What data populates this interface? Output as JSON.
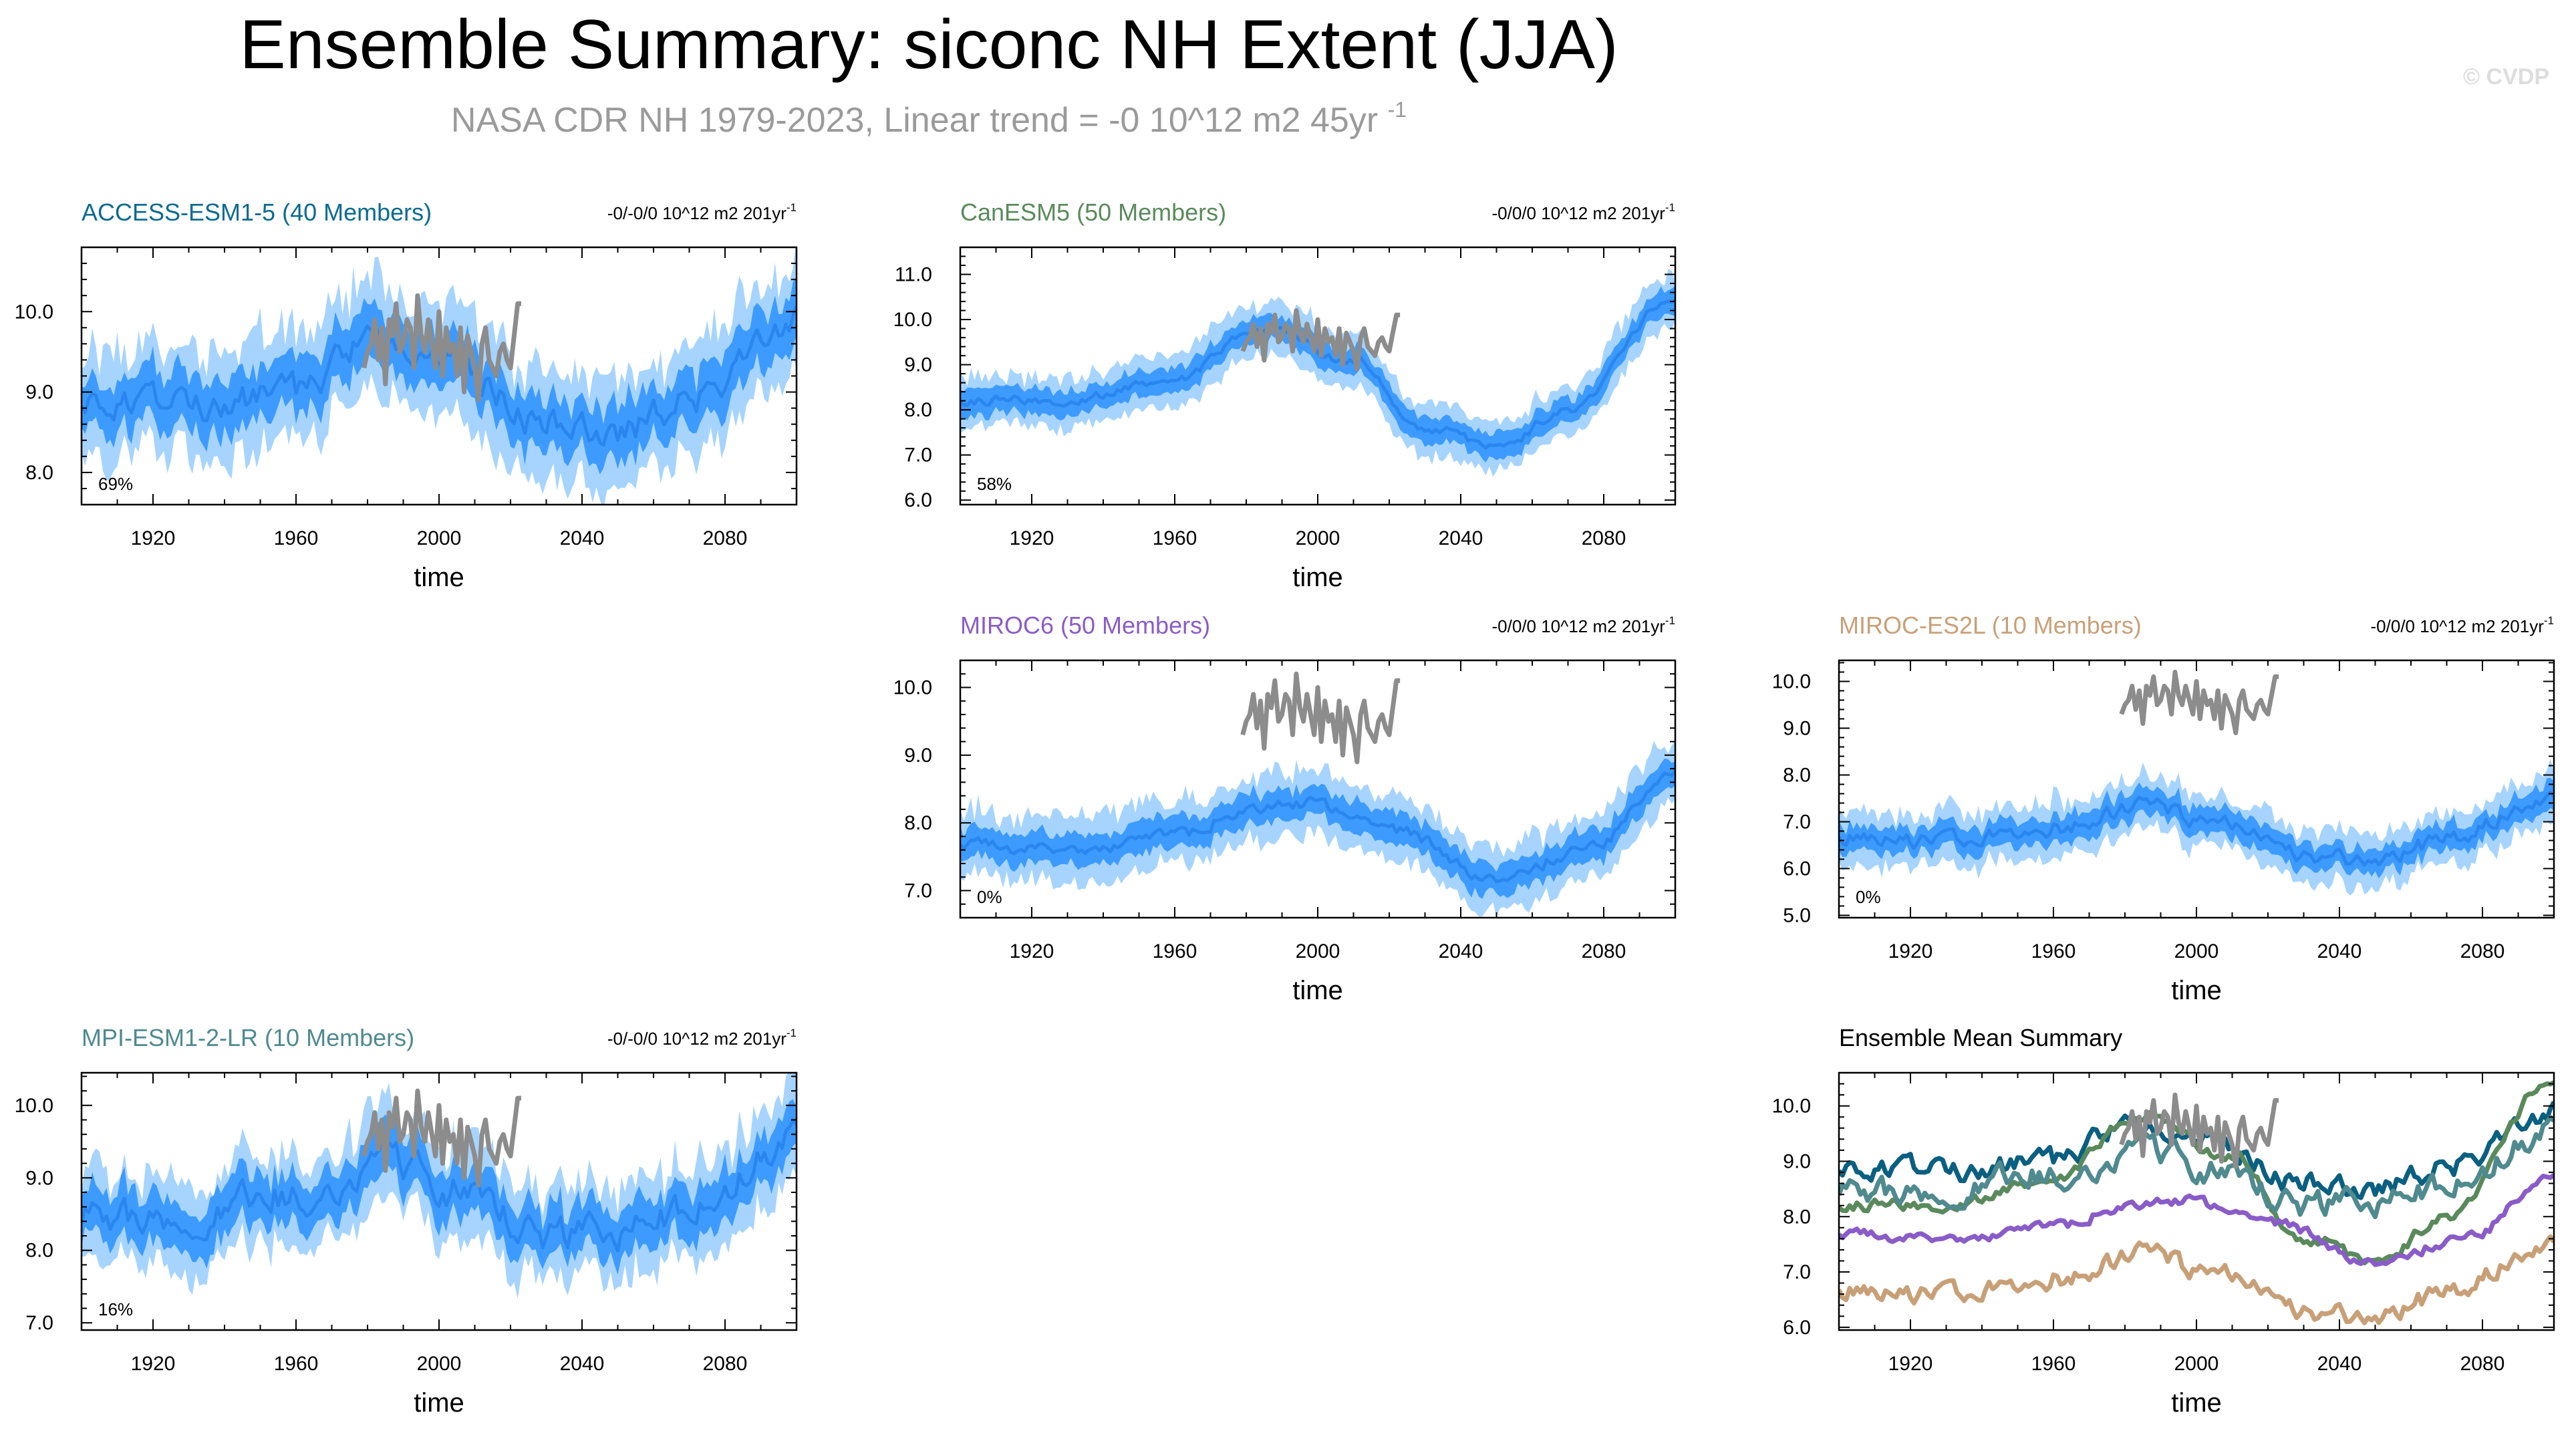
{
  "page": {
    "title": "Ensemble Summary: siconc NH Extent (JJA)",
    "subtitle": "NASA CDR NH 1979-2023, Linear trend = -0 10^12 m2 45yr",
    "subtitle_sup": "-1",
    "watermark": "© CVDP"
  },
  "colors": {
    "envelope_outer": "#a6d4ff",
    "envelope_inner": "#3d9bff",
    "ensemble_mean": "#2a86ee",
    "observations": "#8c8c8c",
    "title_text": "#000000",
    "subtitle_text": "#9a9a9a"
  },
  "observations": {
    "name": "NASA CDR NH",
    "years": [
      1979,
      2023
    ],
    "values": [
      9.3,
      9.5,
      9.6,
      9.9,
      9.4,
      9.8,
      9.1,
      9.9,
      9.7,
      10.1,
      9.5,
      9.6,
      9.9,
      9.8,
      9.3,
      10.2,
      9.7,
      9.5,
      9.9,
      9.6,
      9.3,
      10.0,
      9.2,
      9.8,
      9.5,
      9.6,
      9.2,
      9.8,
      9.0,
      9.7,
      9.5,
      9.3,
      8.9,
      9.6,
      9.8,
      9.4,
      9.3,
      9.2,
      9.5,
      9.6,
      9.4,
      9.3,
      9.7,
      10.1,
      10.1
    ]
  },
  "chart_data": [
    {
      "type": "area",
      "id": "access",
      "title": "ACCESS-ESM1-5 (40 Members)",
      "title_color": "#0b6b8f",
      "trend_label": "-0/-0/0 10^12 m2 201yr",
      "trend_sup": "-1",
      "percent_label": "69%",
      "xlabel": "time",
      "ylabel": "",
      "xlim": [
        1900,
        2100
      ],
      "ylim": [
        7.6,
        10.8
      ],
      "xticks": [
        1920,
        1960,
        2000,
        2040,
        2080
      ],
      "yticks": [
        8.0,
        9.0,
        10.0
      ],
      "ytick_labels": [
        "8.0",
        "9.0",
        "10.0"
      ],
      "mean_anchors": {
        "x": [
          1900,
          1930,
          1960,
          1980,
          2000,
          2030,
          2050,
          2070,
          2100
        ],
        "y": [
          8.9,
          8.8,
          9.0,
          9.6,
          9.5,
          8.6,
          8.5,
          8.9,
          9.9
        ]
      },
      "inner_spread": 0.33,
      "outer_spread": 0.65,
      "noise": 0.16
    },
    {
      "type": "area",
      "id": "canesm5",
      "title": "CanESM5 (50 Members)",
      "title_color": "#5a8a5c",
      "trend_label": "-0/0/0 10^12 m2 201yr",
      "trend_sup": "-1",
      "percent_label": "58%",
      "xlabel": "time",
      "ylabel": "",
      "xlim": [
        1900,
        2100
      ],
      "ylim": [
        5.9,
        11.6
      ],
      "xticks": [
        1920,
        1960,
        2000,
        2040,
        2080
      ],
      "yticks": [
        6.0,
        7.0,
        8.0,
        9.0,
        10.0,
        11.0
      ],
      "ytick_labels": [
        "6.0",
        "7.0",
        "8.0",
        "9.0",
        "10.0",
        "11.0"
      ],
      "mean_anchors": {
        "x": [
          1900,
          1930,
          1960,
          1985,
          2010,
          2030,
          2050,
          2070,
          2100
        ],
        "y": [
          8.2,
          8.2,
          8.7,
          9.8,
          9.1,
          7.6,
          7.2,
          8.0,
          10.5
        ]
      },
      "inner_spread": 0.28,
      "outer_spread": 0.55,
      "noise": 0.09
    },
    {
      "type": "area",
      "id": "miroc6",
      "title": "MIROC6 (50 Members)",
      "title_color": "#8a5cc8",
      "trend_label": "-0/0/0 10^12 m2 201yr",
      "trend_sup": "-1",
      "percent_label": "0%",
      "xlabel": "time",
      "ylabel": "",
      "xlim": [
        1900,
        2100
      ],
      "ylim": [
        6.6,
        10.4
      ],
      "xticks": [
        1920,
        1960,
        2000,
        2040,
        2080
      ],
      "yticks": [
        7.0,
        8.0,
        9.0,
        10.0
      ],
      "ytick_labels": [
        "7.0",
        "8.0",
        "9.0",
        "10.0"
      ],
      "mean_anchors": {
        "x": [
          1900,
          1930,
          1960,
          1980,
          1995,
          2020,
          2050,
          2075,
          2100
        ],
        "y": [
          7.7,
          7.6,
          7.8,
          8.2,
          8.3,
          7.9,
          7.2,
          7.6,
          8.7
        ]
      },
      "inner_spread": 0.22,
      "outer_spread": 0.45,
      "noise": 0.08
    },
    {
      "type": "area",
      "id": "miroces2l",
      "title": "MIROC-ES2L (10 Members)",
      "title_color": "#c8a078",
      "trend_label": "-0/0/0 10^12 m2 201yr",
      "trend_sup": "-1",
      "percent_label": "0%",
      "xlabel": "time",
      "ylabel": "",
      "xlim": [
        1900,
        2100
      ],
      "ylim": [
        4.95,
        10.45
      ],
      "xticks": [
        1920,
        1960,
        2000,
        2040,
        2080
      ],
      "yticks": [
        5.0,
        6.0,
        7.0,
        8.0,
        9.0,
        10.0
      ],
      "ytick_labels": [
        "5.0",
        "6.0",
        "7.0",
        "8.0",
        "9.0",
        "10.0"
      ],
      "mean_anchors": {
        "x": [
          1900,
          1930,
          1960,
          1985,
          2005,
          2030,
          2050,
          2070,
          2100
        ],
        "y": [
          6.7,
          6.6,
          6.9,
          7.3,
          7.0,
          6.3,
          6.2,
          6.6,
          7.6
        ]
      },
      "inner_spread": 0.28,
      "outer_spread": 0.55,
      "noise": 0.15
    },
    {
      "type": "area",
      "id": "mpi",
      "title": "MPI-ESM1-2-LR (10 Members)",
      "title_color": "#4f8a8f",
      "trend_label": "-0/-0/0 10^12 m2 201yr",
      "trend_sup": "-1",
      "percent_label": "16%",
      "xlabel": "time",
      "ylabel": "",
      "xlim": [
        1900,
        2100
      ],
      "ylim": [
        6.9,
        10.45
      ],
      "xticks": [
        1920,
        1960,
        2000,
        2040,
        2080
      ],
      "yticks": [
        7.0,
        8.0,
        9.0,
        10.0
      ],
      "ytick_labels": [
        "7.0",
        "8.0",
        "9.0",
        "10.0"
      ],
      "mean_anchors": {
        "x": [
          1900,
          1930,
          1960,
          1985,
          2005,
          2030,
          2050,
          2070,
          2100
        ],
        "y": [
          8.4,
          8.5,
          8.8,
          9.2,
          8.8,
          8.2,
          8.2,
          8.6,
          9.5
        ]
      },
      "inner_spread": 0.33,
      "outer_spread": 0.62,
      "noise": 0.2
    },
    {
      "type": "line",
      "id": "summary",
      "title": "Ensemble Mean Summary",
      "title_color": "#000000",
      "xlabel": "time",
      "ylabel": "",
      "xlim": [
        1900,
        2100
      ],
      "ylim": [
        5.95,
        10.6
      ],
      "xticks": [
        1920,
        1960,
        2000,
        2040,
        2080
      ],
      "yticks": [
        6.0,
        7.0,
        8.0,
        9.0,
        10.0
      ],
      "ytick_labels": [
        "6.0",
        "7.0",
        "8.0",
        "9.0",
        "10.0"
      ],
      "series": [
        {
          "name": "ACCESS-ESM1-5",
          "color": "#0b5f80",
          "ref": "access"
        },
        {
          "name": "CanESM5",
          "color": "#5a8a5c",
          "ref": "canesm5"
        },
        {
          "name": "MIROC6",
          "color": "#8a5cc8",
          "ref": "miroc6"
        },
        {
          "name": "MIROC-ES2L",
          "color": "#c8a078",
          "ref": "miroces2l"
        },
        {
          "name": "MPI-ESM1-2-LR",
          "color": "#4f8a8f",
          "ref": "mpi"
        }
      ]
    }
  ]
}
